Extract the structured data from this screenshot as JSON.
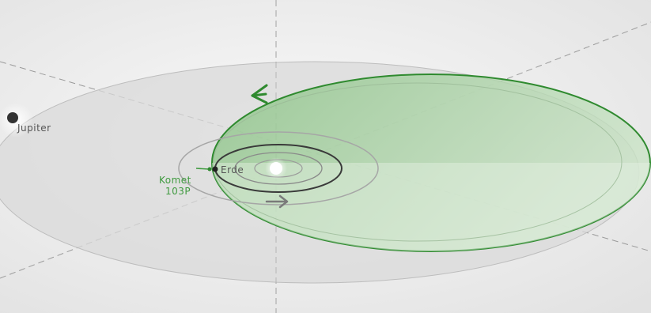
{
  "labels": {
    "jupiter": "Jupiter",
    "earth": "Erde",
    "comet_line1": "Komet",
    "comet_line2": "103P"
  },
  "colors": {
    "background_edge": "#e4e4e4",
    "background_center": "#f8f8f8",
    "jupiter_orbit_fill": "#d8d8d8",
    "comet_orbit_fill": "#9fc79a",
    "comet_orbit_stroke": "#2f8a2f",
    "comet_label": "#3f9a3f",
    "planet_label": "#555555",
    "inner_orbit_stroke": "#3a3a3a",
    "sun": "#ffffff",
    "dashed_axes": "#9a9a9a",
    "earth_direction_arrow": "#7a7a7a"
  },
  "icons": {
    "comet_direction": "arrow-left-icon",
    "earth_direction": "arrow-right-icon"
  }
}
